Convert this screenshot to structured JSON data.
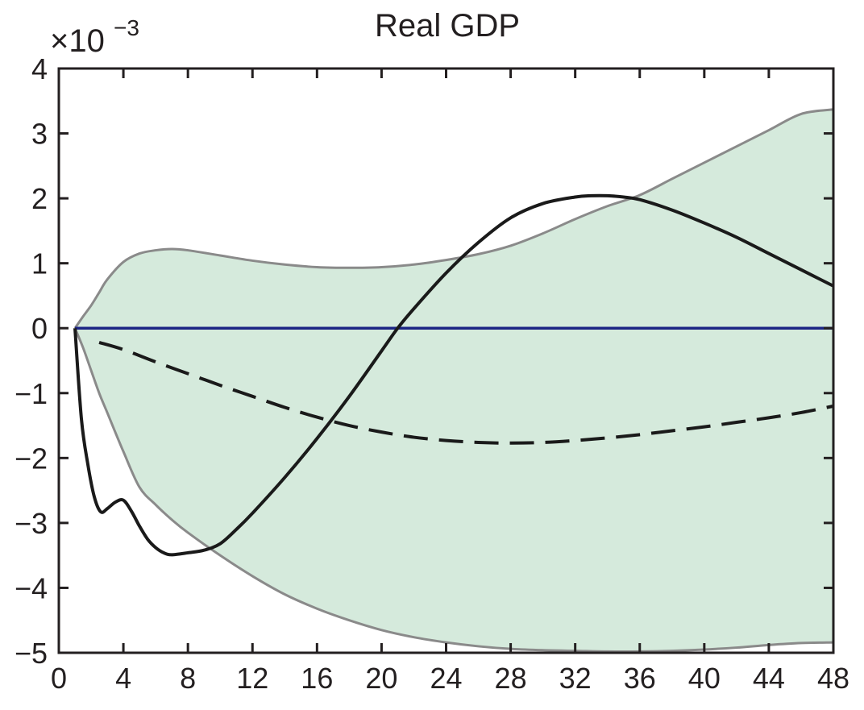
{
  "chart_data": {
    "type": "line",
    "title": "Real GDP",
    "xlabel": "",
    "ylabel": "",
    "y_multiplier_base": "×10",
    "y_multiplier_exponent": "−3",
    "xlim": [
      0,
      48
    ],
    "ylim": [
      -5,
      4
    ],
    "x_ticks": [
      0,
      4,
      8,
      12,
      16,
      20,
      24,
      28,
      32,
      36,
      40,
      44,
      48
    ],
    "x_tick_labels": [
      "0",
      "4",
      "8",
      "12",
      "16",
      "20",
      "24",
      "28",
      "32",
      "36",
      "40",
      "44",
      "48"
    ],
    "y_ticks": [
      -5,
      -4,
      -3,
      -2,
      -1,
      0,
      1,
      2,
      3,
      4
    ],
    "y_tick_labels": [
      "−5",
      "−4",
      "−3",
      "−2",
      "−1",
      "0",
      "1",
      "2",
      "3",
      "4"
    ],
    "grid": false,
    "colors": {
      "band_fill": "#d5eadc",
      "band_edge": "#8a8a8a",
      "zero_line": "#1c2585",
      "solid_line": "#1a1a1a",
      "dashed_line": "#1a1a1a",
      "axes": "#231f20"
    },
    "confidence_band": {
      "x": [
        1,
        1.5,
        2,
        2.5,
        3,
        4,
        5,
        6,
        7,
        8,
        10,
        12,
        14,
        16,
        18,
        20,
        22,
        24,
        26,
        28,
        30,
        32,
        34,
        36,
        38,
        40,
        42,
        44,
        46,
        48
      ],
      "upper": [
        0.0,
        0.18,
        0.35,
        0.55,
        0.75,
        1.02,
        1.15,
        1.2,
        1.22,
        1.2,
        1.12,
        1.04,
        0.98,
        0.94,
        0.93,
        0.94,
        0.98,
        1.05,
        1.14,
        1.27,
        1.46,
        1.68,
        1.88,
        2.05,
        2.3,
        2.55,
        2.8,
        3.05,
        3.3,
        3.37
      ],
      "lower": [
        0.0,
        -0.3,
        -0.65,
        -1.0,
        -1.3,
        -1.9,
        -2.45,
        -2.72,
        -2.95,
        -3.15,
        -3.5,
        -3.82,
        -4.1,
        -4.32,
        -4.5,
        -4.65,
        -4.76,
        -4.84,
        -4.9,
        -4.94,
        -4.96,
        -4.97,
        -4.98,
        -4.98,
        -4.97,
        -4.95,
        -4.92,
        -4.88,
        -4.85,
        -4.84
      ]
    },
    "series": [
      {
        "style": "solid",
        "x": [
          1,
          1.4,
          1.8,
          2.2,
          2.6,
          3,
          3.5,
          4,
          4.5,
          5,
          5.5,
          6,
          6.5,
          7,
          8,
          9,
          10,
          11,
          12,
          14,
          16,
          18,
          20,
          21,
          22,
          24,
          26,
          28,
          30,
          32,
          33,
          34,
          35,
          36,
          38,
          40,
          42,
          44,
          46,
          48
        ],
        "y": [
          0.0,
          -1.4,
          -2.1,
          -2.6,
          -2.83,
          -2.78,
          -2.68,
          -2.65,
          -2.82,
          -3.05,
          -3.25,
          -3.38,
          -3.46,
          -3.49,
          -3.46,
          -3.42,
          -3.32,
          -3.1,
          -2.85,
          -2.3,
          -1.7,
          -1.05,
          -0.35,
          0.0,
          0.3,
          0.85,
          1.32,
          1.7,
          1.92,
          2.02,
          2.04,
          2.04,
          2.02,
          1.98,
          1.82,
          1.62,
          1.4,
          1.15,
          0.9,
          0.65
        ]
      },
      {
        "style": "dashed",
        "x": [
          2.5,
          4,
          6,
          8,
          10,
          12,
          14,
          16,
          18,
          20,
          22,
          24,
          26,
          28,
          30,
          32,
          34,
          36,
          38,
          40,
          42,
          44,
          46,
          48
        ],
        "y": [
          -0.22,
          -0.33,
          -0.52,
          -0.7,
          -0.88,
          -1.05,
          -1.22,
          -1.37,
          -1.5,
          -1.6,
          -1.68,
          -1.73,
          -1.76,
          -1.77,
          -1.76,
          -1.73,
          -1.69,
          -1.64,
          -1.58,
          -1.52,
          -1.45,
          -1.38,
          -1.3,
          -1.2
        ]
      },
      {
        "style": "zero",
        "x": [
          1,
          48
        ],
        "y": [
          0,
          0
        ]
      }
    ]
  }
}
